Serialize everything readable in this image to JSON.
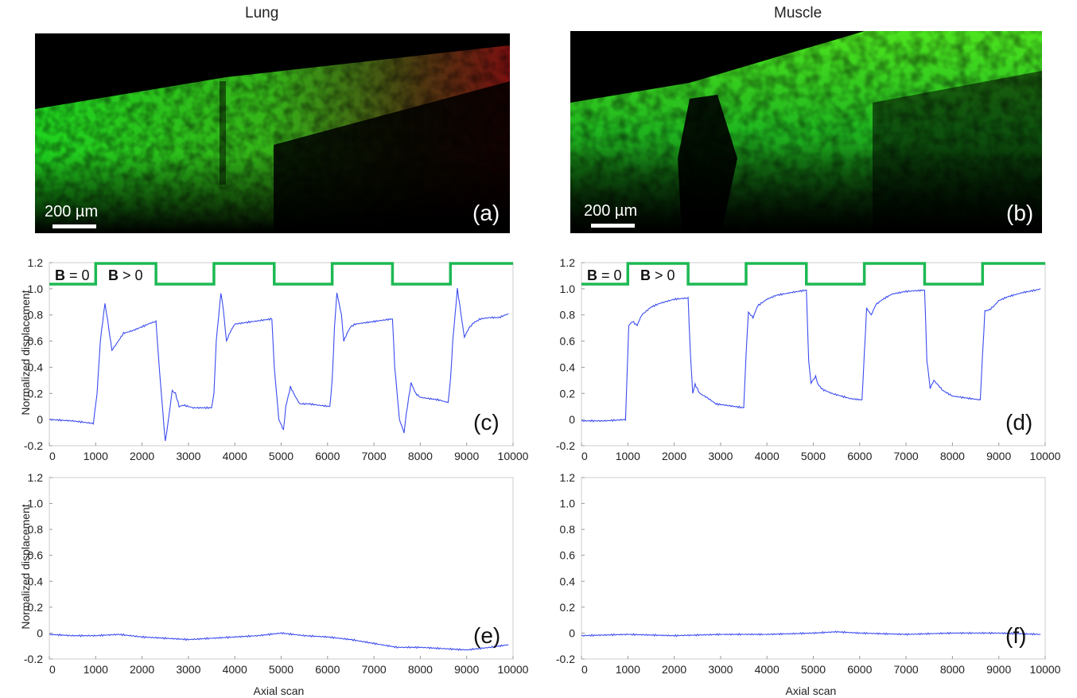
{
  "column_titles": {
    "left": "Lung",
    "right": "Muscle"
  },
  "images": {
    "a": {
      "label": "(a)",
      "scale_bar": "200 µm"
    },
    "b": {
      "label": "(b)",
      "scale_bar": "200 µm"
    }
  },
  "stimulus": {
    "label_off_bold": "B",
    "label_off_rest": " = 0",
    "label_on_bold": "B",
    "label_on_rest": " > 0",
    "color": "#1db954"
  },
  "colors": {
    "trace": "#3b4cf0",
    "grid": "#cccccc"
  },
  "chart_data": [
    {
      "id": "c",
      "label": "(c)",
      "type": "line",
      "ylabel": "Normalized displacement",
      "xlabel": "",
      "xlim": [
        0,
        10000
      ],
      "ylim": [
        -0.2,
        1.2
      ],
      "x_ticks": [
        0,
        1000,
        2000,
        3000,
        4000,
        5000,
        6000,
        7000,
        8000,
        9000,
        10000
      ],
      "y_ticks": [
        "-0.2",
        "0",
        "0.2",
        "0.4",
        "0.6",
        "0.8",
        "1.0",
        "1.2"
      ],
      "stimulus_on": [
        [
          1000,
          2300
        ],
        [
          3550,
          4850
        ],
        [
          6100,
          7400
        ],
        [
          8650,
          10000
        ]
      ],
      "series": [
        {
          "x": [
            0,
            500,
            950,
            1030,
            1100,
            1200,
            1260,
            1350,
            1450,
            1600,
            1800,
            2000,
            2200,
            2300,
            2370,
            2450,
            2500,
            2550,
            2650,
            2720,
            2800,
            2900,
            3100,
            3300,
            3500,
            3550,
            3600,
            3700,
            3750,
            3820,
            3900,
            4000,
            4200,
            4400,
            4600,
            4800,
            4850,
            4950,
            5050,
            5100,
            5200,
            5300,
            5400,
            5600,
            5800,
            6050,
            6100,
            6150,
            6200,
            6300,
            6350,
            6420,
            6500,
            6600,
            6800,
            7000,
            7200,
            7400,
            7450,
            7550,
            7650,
            7700,
            7800,
            7900,
            8000,
            8200,
            8400,
            8600,
            8650,
            8700,
            8800,
            8900,
            8950,
            9050,
            9150,
            9300,
            9500,
            9700,
            9900
          ],
          "y": [
            0.0,
            -0.01,
            -0.03,
            0.2,
            0.6,
            0.89,
            0.75,
            0.53,
            0.58,
            0.66,
            0.68,
            0.71,
            0.74,
            0.75,
            0.4,
            0.05,
            -0.17,
            -0.05,
            0.22,
            0.2,
            0.1,
            0.11,
            0.09,
            0.09,
            0.09,
            0.2,
            0.6,
            0.97,
            0.85,
            0.6,
            0.67,
            0.73,
            0.74,
            0.75,
            0.76,
            0.77,
            0.4,
            0.0,
            -0.08,
            0.1,
            0.25,
            0.18,
            0.12,
            0.12,
            0.11,
            0.1,
            0.3,
            0.7,
            0.97,
            0.8,
            0.6,
            0.66,
            0.71,
            0.73,
            0.74,
            0.75,
            0.76,
            0.77,
            0.4,
            0.0,
            -0.1,
            0.05,
            0.28,
            0.2,
            0.17,
            0.16,
            0.15,
            0.13,
            0.3,
            0.6,
            1.0,
            0.75,
            0.63,
            0.7,
            0.74,
            0.77,
            0.78,
            0.78,
            0.81
          ]
        }
      ]
    },
    {
      "id": "d",
      "label": "(d)",
      "type": "line",
      "ylabel": "",
      "xlabel": "",
      "xlim": [
        0,
        10000
      ],
      "ylim": [
        -0.2,
        1.2
      ],
      "x_ticks": [
        0,
        1000,
        2000,
        3000,
        4000,
        5000,
        6000,
        7000,
        8000,
        9000,
        10000
      ],
      "y_ticks": [
        "-0.2",
        "0",
        "0.2",
        "0.4",
        "0.6",
        "0.8",
        "1.0",
        "1.2"
      ],
      "stimulus_on": [
        [
          1000,
          2300
        ],
        [
          3550,
          4850
        ],
        [
          6100,
          7400
        ],
        [
          8650,
          10000
        ]
      ],
      "series": [
        {
          "x": [
            0,
            500,
            950,
            980,
            1020,
            1100,
            1200,
            1300,
            1500,
            1700,
            2000,
            2300,
            2350,
            2400,
            2450,
            2550,
            2700,
            2900,
            3100,
            3300,
            3500,
            3550,
            3600,
            3700,
            3800,
            4000,
            4200,
            4500,
            4850,
            4900,
            4950,
            5050,
            5100,
            5200,
            5400,
            5600,
            5800,
            6050,
            6100,
            6150,
            6250,
            6350,
            6500,
            6700,
            7000,
            7400,
            7450,
            7520,
            7600,
            7800,
            8000,
            8200,
            8400,
            8600,
            8650,
            8700,
            8800,
            8900,
            9000,
            9200,
            9500,
            9800,
            9900
          ],
          "y": [
            -0.01,
            -0.01,
            0.0,
            0.3,
            0.72,
            0.75,
            0.72,
            0.8,
            0.86,
            0.89,
            0.92,
            0.93,
            0.5,
            0.2,
            0.27,
            0.2,
            0.17,
            0.12,
            0.11,
            0.1,
            0.09,
            0.5,
            0.82,
            0.78,
            0.87,
            0.92,
            0.95,
            0.97,
            0.99,
            0.45,
            0.28,
            0.33,
            0.27,
            0.23,
            0.2,
            0.18,
            0.16,
            0.15,
            0.5,
            0.85,
            0.8,
            0.88,
            0.92,
            0.96,
            0.98,
            0.99,
            0.45,
            0.24,
            0.3,
            0.22,
            0.18,
            0.17,
            0.16,
            0.15,
            0.5,
            0.83,
            0.84,
            0.87,
            0.91,
            0.94,
            0.97,
            0.99,
            1.0
          ]
        }
      ]
    },
    {
      "id": "e",
      "label": "(e)",
      "type": "line",
      "ylabel": "Normalized displacement",
      "xlabel": "Axial scan",
      "xlim": [
        0,
        10000
      ],
      "ylim": [
        -0.2,
        1.2
      ],
      "x_ticks": [
        0,
        1000,
        2000,
        3000,
        4000,
        5000,
        6000,
        7000,
        8000,
        9000,
        10000
      ],
      "y_ticks": [
        "-0.2",
        "0",
        "0.2",
        "0.4",
        "0.6",
        "0.8",
        "1.0",
        "1.2"
      ],
      "stimulus_on": [],
      "series": [
        {
          "x": [
            0,
            500,
            1000,
            1500,
            2000,
            2500,
            3000,
            3500,
            4000,
            4500,
            5000,
            5500,
            6000,
            6500,
            7000,
            7500,
            8000,
            8500,
            9000,
            9500,
            9900
          ],
          "y": [
            -0.01,
            -0.02,
            -0.02,
            -0.01,
            -0.03,
            -0.04,
            -0.05,
            -0.04,
            -0.03,
            -0.02,
            0.0,
            -0.02,
            -0.03,
            -0.05,
            -0.08,
            -0.11,
            -0.11,
            -0.12,
            -0.13,
            -0.11,
            -0.09
          ]
        }
      ]
    },
    {
      "id": "f",
      "label": "(f)",
      "type": "line",
      "ylabel": "",
      "xlabel": "Axial scan",
      "xlim": [
        0,
        10000
      ],
      "ylim": [
        -0.2,
        1.2
      ],
      "x_ticks": [
        0,
        1000,
        2000,
        3000,
        4000,
        5000,
        6000,
        7000,
        8000,
        9000,
        10000
      ],
      "y_ticks": [
        "-0.2",
        "0",
        "0.2",
        "0.4",
        "0.6",
        "0.8",
        "1.0",
        "1.2"
      ],
      "stimulus_on": [],
      "series": [
        {
          "x": [
            0,
            1000,
            2000,
            3000,
            4000,
            5000,
            5500,
            6000,
            7000,
            8000,
            9000,
            9900
          ],
          "y": [
            -0.02,
            -0.01,
            -0.02,
            -0.01,
            -0.01,
            0.0,
            0.01,
            0.0,
            -0.01,
            0.0,
            0.0,
            -0.01
          ]
        }
      ]
    }
  ]
}
